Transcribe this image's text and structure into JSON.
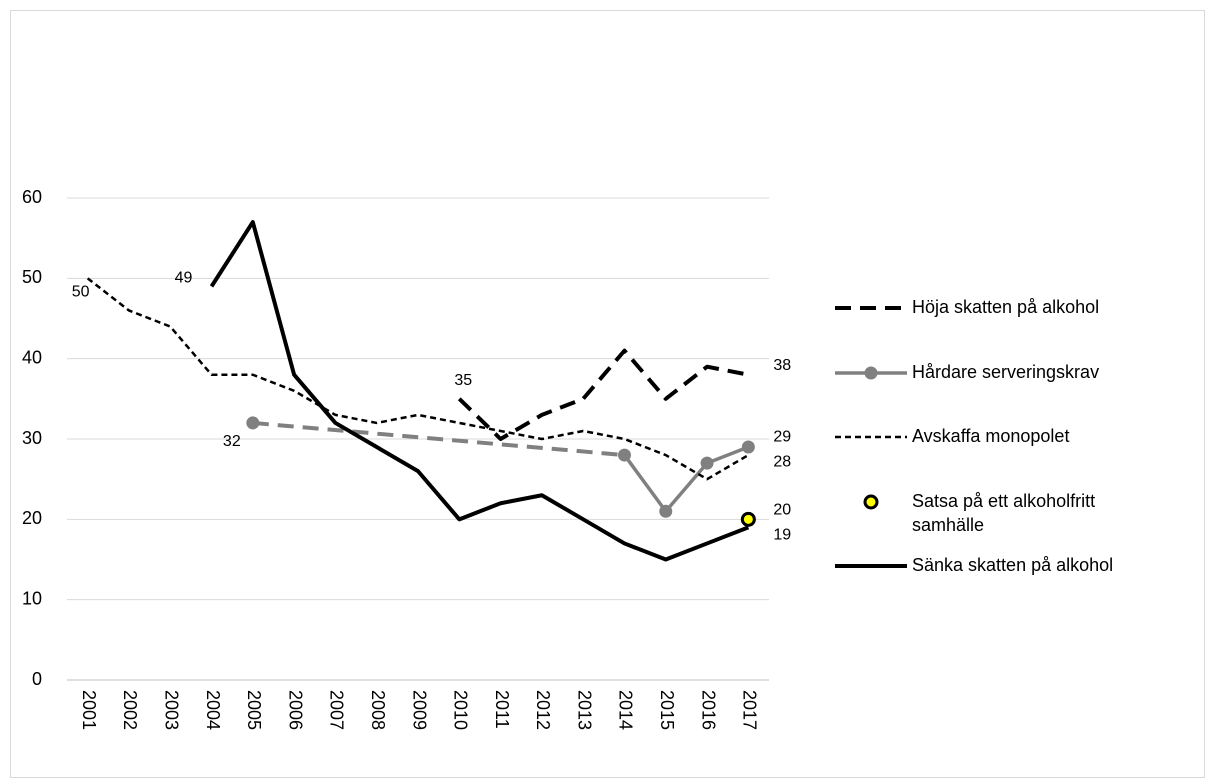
{
  "chart_data": {
    "type": "line",
    "categories": [
      "2001",
      "2002",
      "2003",
      "2004",
      "2005",
      "2006",
      "2007",
      "2008",
      "2009",
      "2010",
      "2011",
      "2012",
      "2013",
      "2014",
      "2015",
      "2016",
      "2017"
    ],
    "ylim": [
      0,
      60
    ],
    "yticks": [
      0,
      10,
      20,
      30,
      40,
      50,
      60
    ],
    "grid": true,
    "legend": "right",
    "series": [
      {
        "name": "Höja skatten på alkohol",
        "color": "#000000",
        "style": "long-dash",
        "values": [
          null,
          null,
          null,
          null,
          null,
          null,
          null,
          null,
          null,
          35,
          30,
          33,
          35,
          41,
          35,
          39,
          38
        ],
        "label_points": [
          9,
          16
        ]
      },
      {
        "name": "Hårdare serveringskrav",
        "color": "#808080",
        "style": "solid",
        "markers": true,
        "connect_gaps": true,
        "values": [
          null,
          null,
          null,
          null,
          32,
          null,
          null,
          null,
          null,
          null,
          null,
          null,
          null,
          28,
          21,
          27,
          29
        ],
        "label_points": [
          4,
          16
        ]
      },
      {
        "name": "Avskaffa monopolet",
        "color": "#000000",
        "style": "short-dash",
        "values": [
          50,
          46,
          44,
          38,
          38,
          36,
          33,
          32,
          33,
          32,
          31,
          30,
          31,
          30,
          28,
          25,
          28
        ],
        "label_points": [
          0,
          16
        ]
      },
      {
        "name": "Satsa på ett alkoholfritt samhälle",
        "color": "#ffff00",
        "style": "none",
        "markers": true,
        "values": [
          null,
          null,
          null,
          null,
          null,
          null,
          null,
          null,
          null,
          null,
          null,
          null,
          null,
          null,
          null,
          null,
          20
        ],
        "label_points": [
          16
        ]
      },
      {
        "name": "Sänka skatten på alkohol",
        "color": "#000000",
        "style": "solid",
        "values": [
          null,
          null,
          null,
          49,
          57,
          38,
          32,
          29,
          26,
          20,
          22,
          23,
          20,
          17,
          15,
          17,
          19
        ],
        "label_points": [
          3,
          16
        ]
      }
    ]
  }
}
